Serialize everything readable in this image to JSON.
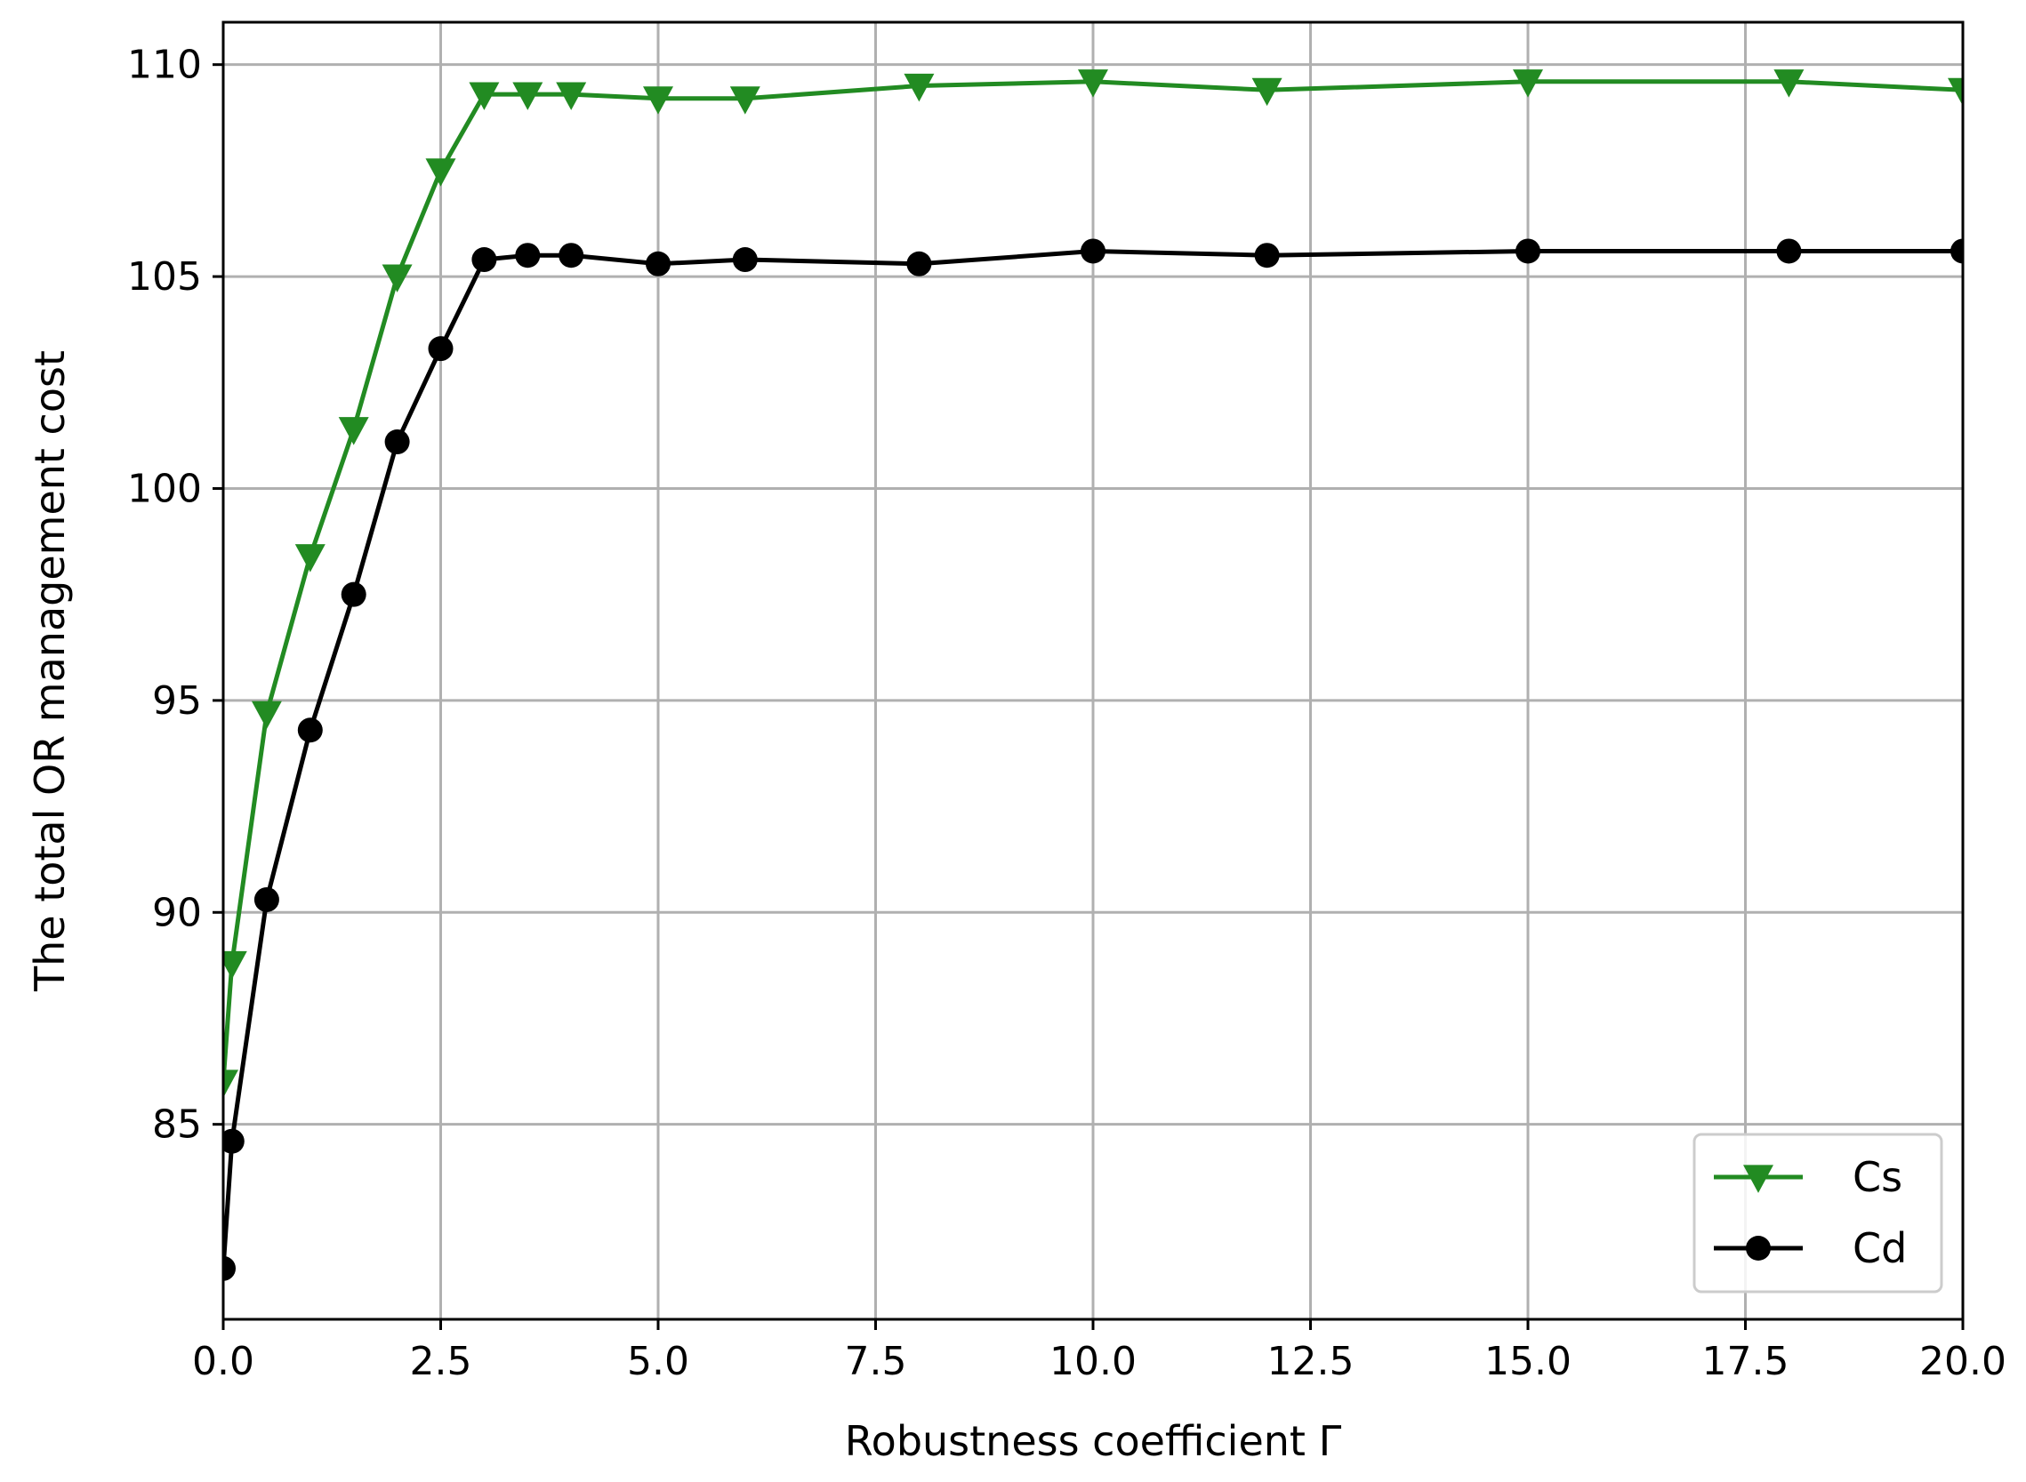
{
  "chart_data": {
    "type": "line",
    "title": "",
    "xlabel": "Robustness coefficient Γ",
    "ylabel": "The total OR management cost",
    "xlim": [
      0,
      20
    ],
    "ylim": [
      80.4,
      111
    ],
    "xticks": [
      "0.0",
      "2.5",
      "5.0",
      "7.5",
      "10.0",
      "12.5",
      "15.0",
      "17.5",
      "20.0"
    ],
    "yticks": [
      "85",
      "90",
      "95",
      "100",
      "105",
      "110"
    ],
    "grid": true,
    "legend_position": "lower-right",
    "series": [
      {
        "name": "Cs",
        "color": "#228b22",
        "marker": "triangle-down",
        "points": [
          [
            0,
            86.0
          ],
          [
            0.1,
            88.8
          ],
          [
            0.5,
            94.7
          ],
          [
            1.0,
            98.4
          ],
          [
            1.5,
            101.4
          ],
          [
            2.0,
            105.0
          ],
          [
            2.5,
            107.5
          ],
          [
            3.0,
            109.3
          ],
          [
            3.5,
            109.3
          ],
          [
            4.0,
            109.3
          ],
          [
            5.0,
            109.2
          ],
          [
            6.0,
            109.2
          ],
          [
            8.0,
            109.5
          ],
          [
            10.0,
            109.6
          ],
          [
            12.0,
            109.4
          ],
          [
            15.0,
            109.6
          ],
          [
            18.0,
            109.6
          ],
          [
            20.0,
            109.4
          ]
        ]
      },
      {
        "name": "Cd",
        "color": "#000000",
        "marker": "circle",
        "points": [
          [
            0,
            81.6
          ],
          [
            0.1,
            84.6
          ],
          [
            0.5,
            90.3
          ],
          [
            1.0,
            94.3
          ],
          [
            1.5,
            97.5
          ],
          [
            2.0,
            101.1
          ],
          [
            2.5,
            103.3
          ],
          [
            3.0,
            105.4
          ],
          [
            3.5,
            105.5
          ],
          [
            4.0,
            105.5
          ],
          [
            5.0,
            105.3
          ],
          [
            6.0,
            105.4
          ],
          [
            8.0,
            105.3
          ],
          [
            10.0,
            105.6
          ],
          [
            12.0,
            105.5
          ],
          [
            15.0,
            105.6
          ],
          [
            18.0,
            105.6
          ],
          [
            20.0,
            105.6
          ]
        ]
      }
    ]
  }
}
